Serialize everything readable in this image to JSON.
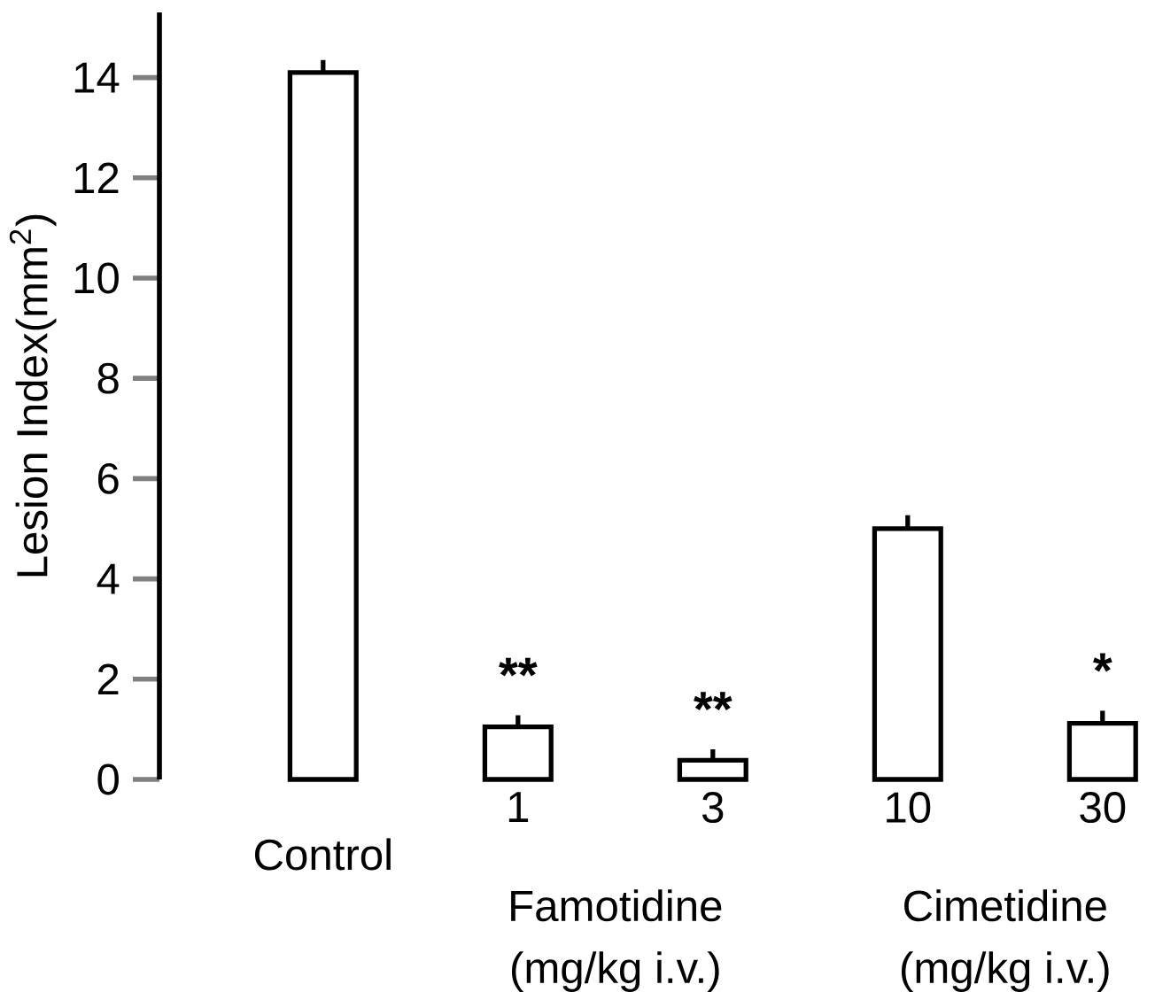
{
  "chart_data": {
    "type": "bar",
    "ylabel": "Lesion Index(mm$^{2}$)",
    "categories": [
      "Control",
      "1",
      "3",
      "10",
      "30"
    ],
    "values": [
      14.1,
      1.05,
      0.38,
      5.0,
      1.12
    ],
    "errors": [
      [
        14.1,
        14.35
      ],
      [
        1.05,
        1.28
      ],
      [
        0.38,
        0.6
      ],
      [
        5.0,
        5.27
      ],
      [
        1.12,
        1.37
      ]
    ],
    "color": "#ffffff",
    "ylim": [
      0,
      15.3
    ],
    "yticks": [
      0,
      2,
      4,
      6,
      8,
      10,
      12,
      14
    ],
    "annotations": [
      {
        "text": "**",
        "x": "1",
        "y": 1.28
      },
      {
        "text": "**",
        "x": "3",
        "y": 0.6
      },
      {
        "text": "*",
        "x": "30",
        "y": 1.37
      },
      "Famotidine",
      "(mg/kg i.v.)",
      "Cimetidine",
      "(mg/kg i.v.)"
    ]
  }
}
